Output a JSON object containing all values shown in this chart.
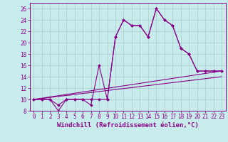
{
  "xlabel": "Windchill (Refroidissement éolien,°C)",
  "bg_color": "#c8ecec",
  "line_color": "#880088",
  "grid_color": "#aacccc",
  "xlim": [
    -0.5,
    23.5
  ],
  "ylim": [
    8,
    27
  ],
  "xticks": [
    0,
    1,
    2,
    3,
    4,
    5,
    6,
    7,
    8,
    9,
    10,
    11,
    12,
    13,
    14,
    15,
    16,
    17,
    18,
    19,
    20,
    21,
    22,
    23
  ],
  "yticks": [
    8,
    10,
    12,
    14,
    16,
    18,
    20,
    22,
    24,
    26
  ],
  "line1_x": [
    0,
    1,
    2,
    3,
    4,
    5,
    6,
    7,
    8,
    9,
    10,
    11,
    12,
    13,
    14,
    15,
    16,
    17,
    18,
    19,
    20,
    21,
    22,
    23
  ],
  "line1_y": [
    10,
    10,
    10,
    9,
    10,
    10,
    10,
    9,
    16,
    10,
    21,
    24,
    23,
    23,
    21,
    26,
    24,
    23,
    19,
    18,
    15,
    15,
    15,
    15
  ],
  "line2_x": [
    0,
    1,
    2,
    3,
    4,
    5,
    6,
    7,
    8,
    9,
    10,
    11,
    12,
    13,
    14,
    15,
    16,
    17,
    18,
    19,
    20,
    21,
    22,
    23
  ],
  "line2_y": [
    10,
    10,
    10,
    8,
    10,
    10,
    10,
    10,
    10,
    10,
    21,
    24,
    23,
    23,
    21,
    26,
    24,
    23,
    19,
    18,
    15,
    15,
    15,
    15
  ],
  "line3_x": [
    0,
    23
  ],
  "line3_y": [
    10,
    15
  ],
  "line4_x": [
    0,
    23
  ],
  "line4_y": [
    10,
    14
  ],
  "font_family": "monospace",
  "tick_fontsize": 5.5,
  "label_fontsize": 6.5
}
